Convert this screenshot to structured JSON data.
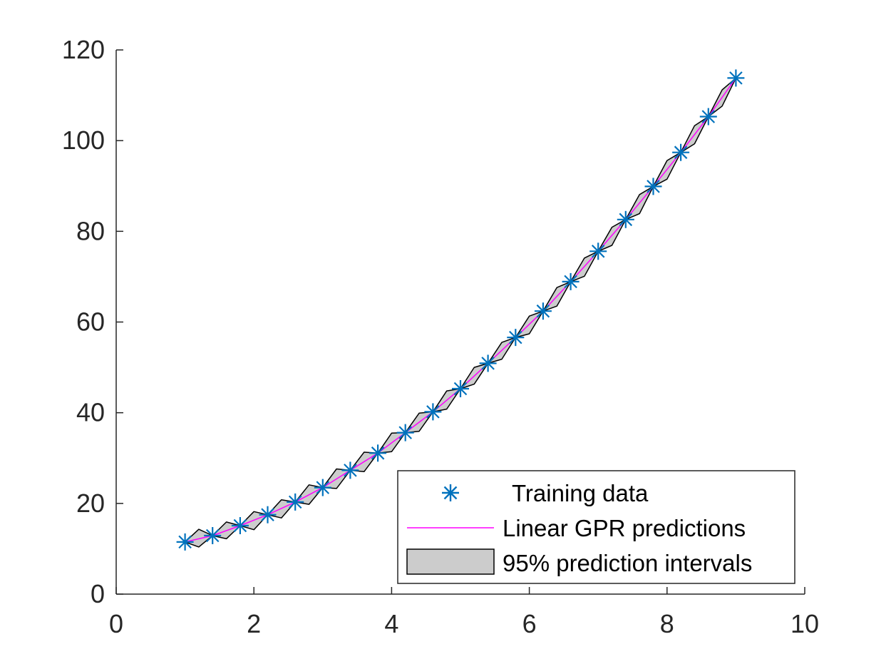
{
  "chart_data": {
    "type": "line",
    "title": "",
    "xlabel": "",
    "ylabel": "",
    "xlim": [
      0,
      10
    ],
    "ylim": [
      0,
      120
    ],
    "xticks": [
      0,
      2,
      4,
      6,
      8,
      10
    ],
    "yticks": [
      0,
      20,
      40,
      60,
      80,
      100,
      120
    ],
    "grid": false,
    "legend_position": "bottom-right",
    "series": [
      {
        "name": "Training data",
        "kind": "scatter",
        "marker": "asterisk",
        "color": "#0072BD",
        "x": [
          1,
          1.4,
          1.8,
          2.2,
          2.6,
          3,
          3.4,
          3.8,
          4.2,
          4.6,
          5,
          5.4,
          5.8,
          6.2,
          6.6,
          7,
          7.4,
          7.8,
          8.2,
          8.6,
          9
        ],
        "y": [
          11.5,
          12.9,
          15.1,
          17.5,
          20.3,
          23.5,
          27.3,
          31.1,
          35.6,
          40.2,
          45.3,
          50.9,
          56.6,
          62.4,
          68.9,
          75.6,
          82.6,
          89.9,
          97.4,
          105.3,
          113.8
        ]
      },
      {
        "name": "Linear GPR predictions",
        "kind": "line",
        "color": "#FF00FF",
        "x": [
          1,
          1.4,
          1.8,
          2.2,
          2.6,
          3,
          3.4,
          3.8,
          4.2,
          4.6,
          5,
          5.4,
          5.8,
          6.2,
          6.6,
          7,
          7.4,
          7.8,
          8.2,
          8.6,
          9
        ],
        "y": [
          11.5,
          12.9,
          15.1,
          17.5,
          20.3,
          23.5,
          27.3,
          31.1,
          35.6,
          40.2,
          45.3,
          50.9,
          56.6,
          62.4,
          68.9,
          75.6,
          82.6,
          89.9,
          97.4,
          105.3,
          113.8
        ]
      },
      {
        "name": "95% prediction intervals",
        "kind": "band",
        "fill": "#CCCCCC",
        "edge": "#000000",
        "x": [
          1,
          1.2,
          1.4,
          1.6,
          1.8,
          2,
          2.2,
          2.4,
          2.6,
          2.8,
          3,
          3.2,
          3.4,
          3.6,
          3.8,
          4,
          4.2,
          4.4,
          4.6,
          4.8,
          5,
          5.2,
          5.4,
          5.6,
          5.8,
          6,
          6.2,
          6.4,
          6.6,
          6.8,
          7,
          7.2,
          7.4,
          7.6,
          7.8,
          8,
          8.2,
          8.4,
          8.6,
          8.8,
          9
        ],
        "lower": [
          11.5,
          10.4,
          12.9,
          12.2,
          15.1,
          14.2,
          17.5,
          16.8,
          20.3,
          19.8,
          23.5,
          23.3,
          27.3,
          27.0,
          31.1,
          31.4,
          35.6,
          35.9,
          40.2,
          40.8,
          45.3,
          46.3,
          50.9,
          51.8,
          56.6,
          57.4,
          62.4,
          63.5,
          68.9,
          70.1,
          75.6,
          76.9,
          82.6,
          83.9,
          89.9,
          91.5,
          97.4,
          99.3,
          105.3,
          107.6,
          113.8
        ],
        "upper": [
          11.5,
          14.3,
          12.9,
          15.9,
          15.1,
          18.2,
          17.5,
          20.8,
          20.3,
          24.1,
          23.5,
          27.6,
          27.3,
          31.3,
          31.1,
          35.5,
          35.6,
          39.9,
          40.2,
          44.8,
          45.3,
          50.0,
          50.9,
          55.5,
          56.6,
          61.3,
          62.4,
          67.6,
          68.9,
          74.1,
          75.6,
          80.9,
          82.6,
          88.1,
          89.9,
          95.6,
          97.4,
          103.3,
          105.3,
          111.2,
          113.8
        ]
      }
    ]
  }
}
